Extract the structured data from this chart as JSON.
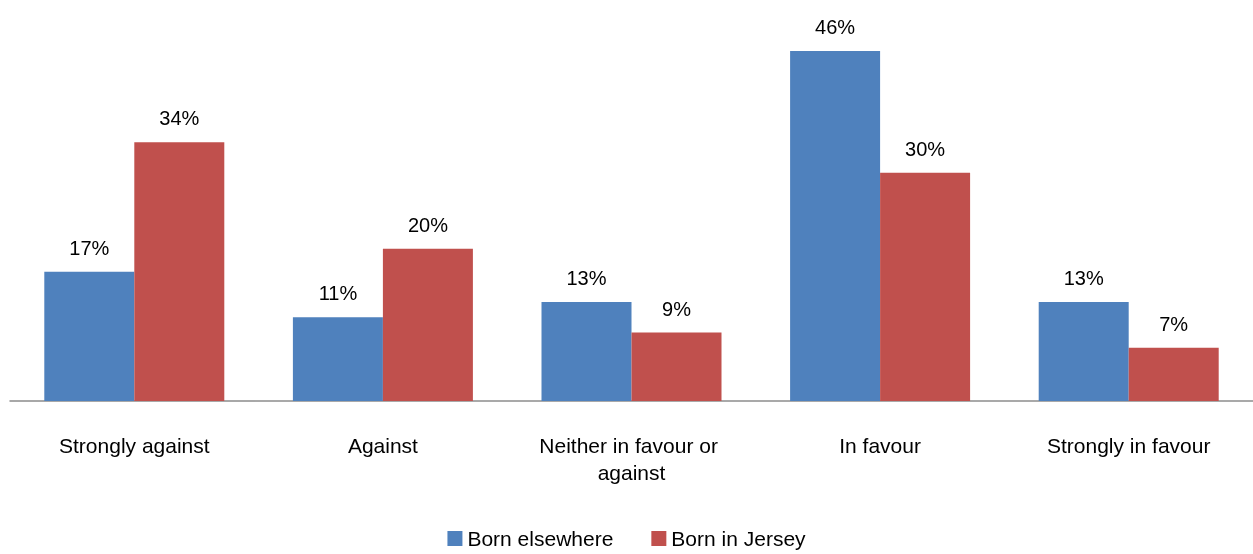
{
  "chart_data": {
    "type": "bar",
    "categories": [
      "Strongly against",
      "Against",
      "Neither in favour or against",
      "In favour",
      "Strongly in favour"
    ],
    "series": [
      {
        "name": "Born elsewhere",
        "color": "#4f81bd",
        "values": [
          17,
          11,
          13,
          46,
          13
        ],
        "value_labels": [
          "17%",
          "11%",
          "13%",
          "46%",
          "13%"
        ]
      },
      {
        "name": "Born in Jersey",
        "color": "#c0504d",
        "values": [
          34,
          20,
          9,
          30,
          7
        ],
        "value_labels": [
          "34%",
          "20%",
          "9%",
          "30%",
          "7%"
        ]
      }
    ],
    "legend": "bottom"
  }
}
